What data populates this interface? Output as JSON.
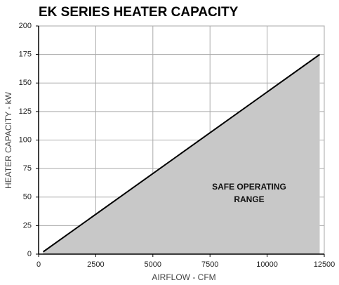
{
  "chart_data": {
    "type": "area",
    "title": "EK SERIES HEATER CAPACITY",
    "x_label": "AIRFLOW - CFM",
    "y_label": "HEATER CAPACITY - kW",
    "annotation": [
      "SAFE OPERATING",
      "RANGE"
    ],
    "series": [
      {
        "x": [
          200,
          12300
        ],
        "values": [
          2,
          175
        ],
        "color": "#000000",
        "fill": "#c8c8c8"
      }
    ],
    "xlim": [
      0,
      12500
    ],
    "xticks": [
      0,
      2500,
      5000,
      7500,
      10000,
      12500
    ],
    "ylim": [
      0,
      200
    ],
    "yticks": [
      0,
      25,
      50,
      75,
      100,
      125,
      150,
      175,
      200
    ],
    "grid": true
  }
}
